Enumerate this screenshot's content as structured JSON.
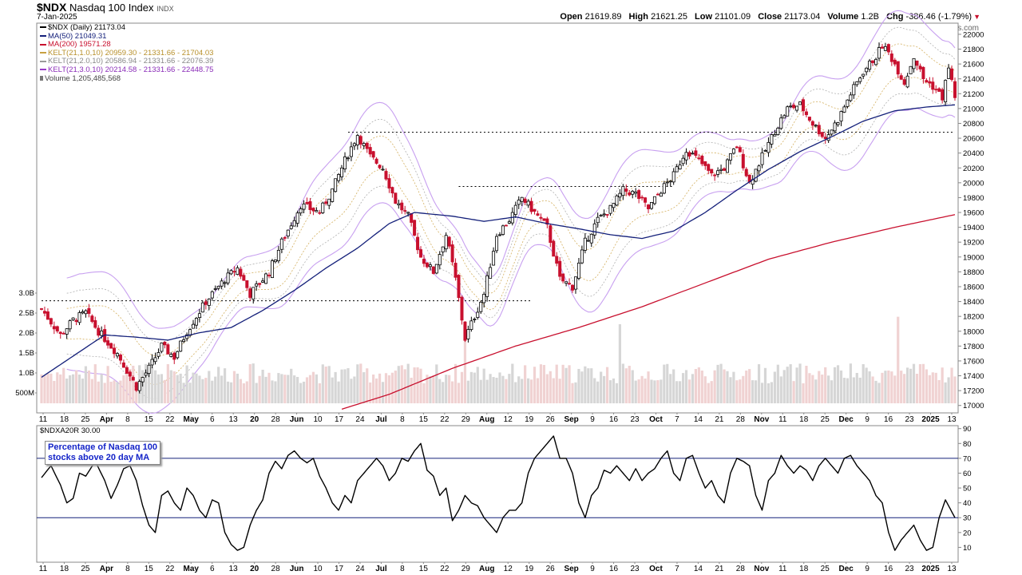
{
  "header": {
    "symbol": "$NDX",
    "name": "Nasdaq 100 Index",
    "exchange": "INDX",
    "date": "7-Jan-2025",
    "open_label": "Open",
    "open": "21619.89",
    "high_label": "High",
    "high": "21621.25",
    "low_label": "Low",
    "low": "21101.09",
    "close_label": "Close",
    "close": "21173.04",
    "volume_label": "Volume",
    "volume": "1.2B",
    "chg_label": "Chg",
    "chg": "-386.46 (-1.79%)",
    "copyright": "© StockCharts.com"
  },
  "legend": [
    {
      "text": "$NDX (Daily) 21173.04",
      "color": "#000000",
      "kind": "candle"
    },
    {
      "text": "MA(50) 21049.31",
      "color": "#14207a",
      "kind": "line"
    },
    {
      "text": "MA(200) 19571.28",
      "color": "#c8102e",
      "kind": "line"
    },
    {
      "text": "KELT(21,1.0,10) 20959.30 - 21331.66 - 21704.03",
      "color": "#c8a040",
      "kind": "line"
    },
    {
      "text": "KELT(21,2.0,10) 20586.94 - 21331.66 - 22076.39",
      "color": "#9a9a9a",
      "kind": "line"
    },
    {
      "text": "KELT(21,3.0,10) 20214.58 - 21331.66 - 22448.75",
      "color": "#9a3cc8",
      "kind": "line"
    },
    {
      "text": "Volume 1,205,485,568",
      "color": "#777777",
      "kind": "bar"
    }
  ],
  "lower": {
    "label": "$NDXA20R 30.00",
    "annotation_line1": "Percentage of Nasdaq 100",
    "annotation_line2": "stocks above 20 day MA"
  },
  "colors": {
    "up": "#000000",
    "down": "#c8102e",
    "ma50": "#14207a",
    "ma200": "#c8102e",
    "vol_down": "#f0d2d2",
    "vol_up": "#d6d6d6"
  },
  "chart_data": [
    {
      "type": "candlestick",
      "title": "$NDX Nasdaq 100 Index INDX",
      "y_ticks": [
        17000,
        17200,
        17400,
        17600,
        17800,
        18000,
        18200,
        18400,
        18600,
        18800,
        19000,
        19200,
        19400,
        19600,
        19800,
        20000,
        20200,
        20400,
        20600,
        20800,
        21000,
        21200,
        21400,
        21600,
        21800,
        22000
      ],
      "ylim": [
        16900,
        22150
      ],
      "volume_ticks": [
        "500M",
        "1.0B",
        "1.5B",
        "2.0B",
        "2.5B",
        "3.0B"
      ],
      "x_tick_labels": [
        "11",
        "18",
        "25",
        "Apr",
        "8",
        "15",
        "22",
        "May",
        "6",
        "13",
        "20",
        "28",
        "Jun",
        "10",
        "17",
        "24",
        "Jul",
        "8",
        "15",
        "22",
        "29",
        "Aug",
        "12",
        "19",
        "26",
        "Sep",
        "9",
        "16",
        "23",
        "Oct",
        "7",
        "14",
        "21",
        "28",
        "Nov",
        "11",
        "18",
        "25",
        "Dec",
        "9",
        "16",
        "23",
        "2025",
        "13"
      ],
      "horizontal_levels": [
        18410,
        19950,
        20680
      ],
      "close_keypoints": [
        [
          0,
          18300
        ],
        [
          6,
          17950
        ],
        [
          10,
          18150
        ],
        [
          14,
          18250
        ],
        [
          18,
          18000
        ],
        [
          24,
          17700
        ],
        [
          30,
          17250
        ],
        [
          34,
          17500
        ],
        [
          38,
          17800
        ],
        [
          42,
          17650
        ],
        [
          46,
          18000
        ],
        [
          52,
          18400
        ],
        [
          58,
          18700
        ],
        [
          62,
          18850
        ],
        [
          66,
          18500
        ],
        [
          72,
          18800
        ],
        [
          76,
          19200
        ],
        [
          82,
          19700
        ],
        [
          88,
          19600
        ],
        [
          92,
          19900
        ],
        [
          96,
          20300
        ],
        [
          100,
          20650
        ],
        [
          104,
          20350
        ],
        [
          108,
          20200
        ],
        [
          112,
          19750
        ],
        [
          116,
          19550
        ],
        [
          120,
          19000
        ],
        [
          124,
          18800
        ],
        [
          128,
          19300
        ],
        [
          131,
          18700
        ],
        [
          134,
          17900
        ],
        [
          137,
          18200
        ],
        [
          140,
          18500
        ],
        [
          144,
          19300
        ],
        [
          148,
          19500
        ],
        [
          152,
          19800
        ],
        [
          156,
          19600
        ],
        [
          160,
          19400
        ],
        [
          164,
          18700
        ],
        [
          168,
          18600
        ],
        [
          172,
          19200
        ],
        [
          176,
          19500
        ],
        [
          180,
          19650
        ],
        [
          184,
          19900
        ],
        [
          188,
          19850
        ],
        [
          192,
          19650
        ],
        [
          196,
          19900
        ],
        [
          200,
          20100
        ],
        [
          204,
          20450
        ],
        [
          208,
          20300
        ],
        [
          212,
          20100
        ],
        [
          216,
          20200
        ],
        [
          220,
          20500
        ],
        [
          224,
          20000
        ],
        [
          228,
          20350
        ],
        [
          232,
          20700
        ],
        [
          236,
          21000
        ],
        [
          240,
          21050
        ],
        [
          244,
          20800
        ],
        [
          248,
          20600
        ],
        [
          252,
          20850
        ],
        [
          256,
          21200
        ],
        [
          260,
          21500
        ],
        [
          264,
          21700
        ],
        [
          266,
          21850
        ],
        [
          268,
          21750
        ],
        [
          270,
          21600
        ],
        [
          273,
          21350
        ],
        [
          276,
          21700
        ],
        [
          279,
          21400
        ],
        [
          282,
          21300
        ],
        [
          285,
          21150
        ],
        [
          287,
          21550
        ],
        [
          289,
          21173
        ]
      ],
      "ma50_keypoints": [
        [
          0,
          17380
        ],
        [
          20,
          17950
        ],
        [
          30,
          17920
        ],
        [
          40,
          17880
        ],
        [
          50,
          17980
        ],
        [
          60,
          18050
        ],
        [
          70,
          18280
        ],
        [
          80,
          18550
        ],
        [
          90,
          18850
        ],
        [
          100,
          19120
        ],
        [
          110,
          19450
        ],
        [
          118,
          19600
        ],
        [
          130,
          19550
        ],
        [
          140,
          19480
        ],
        [
          150,
          19540
        ],
        [
          160,
          19450
        ],
        [
          170,
          19380
        ],
        [
          180,
          19300
        ],
        [
          190,
          19250
        ],
        [
          200,
          19350
        ],
        [
          210,
          19600
        ],
        [
          220,
          19900
        ],
        [
          230,
          20180
        ],
        [
          240,
          20420
        ],
        [
          250,
          20620
        ],
        [
          260,
          20830
        ],
        [
          270,
          20970
        ],
        [
          280,
          21020
        ],
        [
          289,
          21049
        ]
      ],
      "ma200_keypoints": [
        [
          95,
          16950
        ],
        [
          110,
          17150
        ],
        [
          130,
          17500
        ],
        [
          150,
          17800
        ],
        [
          170,
          18050
        ],
        [
          190,
          18330
        ],
        [
          210,
          18650
        ],
        [
          230,
          18970
        ],
        [
          250,
          19200
        ],
        [
          270,
          19400
        ],
        [
          289,
          19571
        ]
      ]
    },
    {
      "type": "line",
      "title": "$NDXA20R 30.00",
      "y_ticks": [
        10,
        20,
        30,
        40,
        50,
        60,
        70,
        80,
        90
      ],
      "ylim": [
        0,
        92
      ],
      "reference_lines": [
        30,
        70
      ],
      "keypoints": [
        [
          0,
          57
        ],
        [
          3,
          65
        ],
        [
          6,
          52
        ],
        [
          8,
          40
        ],
        [
          10,
          43
        ],
        [
          12,
          60
        ],
        [
          14,
          58
        ],
        [
          17,
          68
        ],
        [
          20,
          55
        ],
        [
          22,
          43
        ],
        [
          24,
          52
        ],
        [
          26,
          63
        ],
        [
          28,
          65
        ],
        [
          30,
          55
        ],
        [
          32,
          38
        ],
        [
          34,
          25
        ],
        [
          36,
          20
        ],
        [
          38,
          45
        ],
        [
          40,
          48
        ],
        [
          42,
          40
        ],
        [
          44,
          35
        ],
        [
          46,
          50
        ],
        [
          48,
          45
        ],
        [
          50,
          35
        ],
        [
          52,
          30
        ],
        [
          54,
          42
        ],
        [
          56,
          40
        ],
        [
          58,
          20
        ],
        [
          60,
          12
        ],
        [
          62,
          8
        ],
        [
          64,
          10
        ],
        [
          66,
          25
        ],
        [
          68,
          35
        ],
        [
          70,
          42
        ],
        [
          72,
          60
        ],
        [
          74,
          68
        ],
        [
          76,
          63
        ],
        [
          78,
          72
        ],
        [
          80,
          75
        ],
        [
          82,
          70
        ],
        [
          84,
          67
        ],
        [
          86,
          70
        ],
        [
          88,
          58
        ],
        [
          90,
          50
        ],
        [
          92,
          40
        ],
        [
          94,
          35
        ],
        [
          96,
          45
        ],
        [
          98,
          40
        ],
        [
          100,
          55
        ],
        [
          102,
          60
        ],
        [
          104,
          65
        ],
        [
          106,
          70
        ],
        [
          108,
          65
        ],
        [
          110,
          55
        ],
        [
          112,
          60
        ],
        [
          114,
          70
        ],
        [
          116,
          68
        ],
        [
          118,
          75
        ],
        [
          120,
          80
        ],
        [
          122,
          62
        ],
        [
          124,
          58
        ],
        [
          126,
          45
        ],
        [
          128,
          50
        ],
        [
          130,
          28
        ],
        [
          132,
          35
        ],
        [
          134,
          45
        ],
        [
          136,
          40
        ],
        [
          138,
          38
        ],
        [
          140,
          30
        ],
        [
          142,
          25
        ],
        [
          144,
          20
        ],
        [
          146,
          30
        ],
        [
          148,
          35
        ],
        [
          150,
          35
        ],
        [
          152,
          40
        ],
        [
          154,
          60
        ],
        [
          156,
          70
        ],
        [
          158,
          75
        ],
        [
          160,
          80
        ],
        [
          162,
          85
        ],
        [
          164,
          70
        ],
        [
          166,
          70
        ],
        [
          168,
          60
        ],
        [
          170,
          40
        ],
        [
          172,
          30
        ],
        [
          174,
          45
        ],
        [
          176,
          50
        ],
        [
          178,
          62
        ],
        [
          180,
          60
        ],
        [
          182,
          65
        ],
        [
          184,
          60
        ],
        [
          186,
          55
        ],
        [
          188,
          63
        ],
        [
          190,
          55
        ],
        [
          192,
          60
        ],
        [
          194,
          63
        ],
        [
          196,
          70
        ],
        [
          198,
          75
        ],
        [
          200,
          60
        ],
        [
          202,
          55
        ],
        [
          204,
          70
        ],
        [
          206,
          72
        ],
        [
          208,
          60
        ],
        [
          210,
          50
        ],
        [
          212,
          55
        ],
        [
          214,
          45
        ],
        [
          216,
          40
        ],
        [
          218,
          60
        ],
        [
          220,
          70
        ],
        [
          222,
          68
        ],
        [
          224,
          65
        ],
        [
          226,
          45
        ],
        [
          228,
          35
        ],
        [
          230,
          55
        ],
        [
          232,
          60
        ],
        [
          234,
          72
        ],
        [
          236,
          65
        ],
        [
          238,
          60
        ],
        [
          240,
          65
        ],
        [
          242,
          62
        ],
        [
          244,
          55
        ],
        [
          246,
          65
        ],
        [
          248,
          70
        ],
        [
          250,
          65
        ],
        [
          252,
          60
        ],
        [
          254,
          70
        ],
        [
          256,
          72
        ],
        [
          258,
          65
        ],
        [
          260,
          60
        ],
        [
          262,
          55
        ],
        [
          264,
          45
        ],
        [
          266,
          40
        ],
        [
          268,
          20
        ],
        [
          270,
          8
        ],
        [
          272,
          15
        ],
        [
          274,
          20
        ],
        [
          276,
          25
        ],
        [
          278,
          15
        ],
        [
          280,
          8
        ],
        [
          282,
          10
        ],
        [
          284,
          30
        ],
        [
          286,
          42
        ],
        [
          289,
          30
        ]
      ]
    }
  ]
}
